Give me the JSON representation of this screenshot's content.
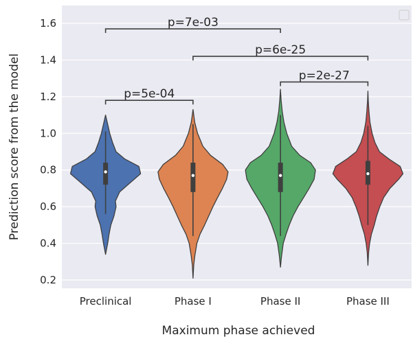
{
  "chart_data": {
    "type": "violin",
    "xlabel": "Maximum phase achieved",
    "ylabel": "Prediction score from the model",
    "ylim": [
      0.15,
      1.68
    ],
    "yticks": [
      "0.2",
      "0.4",
      "0.6",
      "0.8",
      "1.0",
      "1.2",
      "1.4",
      "1.6"
    ],
    "grid": true,
    "legend": "top-right (empty)",
    "categories": [
      "Preclinical",
      "Phase I",
      "Phase II",
      "Phase III"
    ],
    "series": [
      {
        "category": "Preclinical",
        "color": "#4c72b0",
        "min": 0.34,
        "max": 1.1,
        "q1": 0.72,
        "median": 0.79,
        "q3": 0.84,
        "whisker_low": 0.56,
        "whisker_high": 1.01,
        "profile": [
          [
            0.34,
            0.0
          ],
          [
            0.4,
            0.06
          ],
          [
            0.45,
            0.1
          ],
          [
            0.5,
            0.15
          ],
          [
            0.55,
            0.24
          ],
          [
            0.6,
            0.3
          ],
          [
            0.63,
            0.28
          ],
          [
            0.68,
            0.4
          ],
          [
            0.73,
            0.7
          ],
          [
            0.78,
            1.0
          ],
          [
            0.82,
            0.95
          ],
          [
            0.86,
            0.55
          ],
          [
            0.9,
            0.3
          ],
          [
            0.95,
            0.2
          ],
          [
            1.0,
            0.12
          ],
          [
            1.05,
            0.06
          ],
          [
            1.1,
            0.0
          ]
        ]
      },
      {
        "category": "Phase I",
        "color": "#dd8452",
        "min": 0.21,
        "max": 1.13,
        "q1": 0.68,
        "median": 0.77,
        "q3": 0.84,
        "whisker_low": 0.44,
        "whisker_high": 1.05,
        "profile": [
          [
            0.21,
            0.0
          ],
          [
            0.28,
            0.02
          ],
          [
            0.33,
            0.05
          ],
          [
            0.4,
            0.11
          ],
          [
            0.45,
            0.2
          ],
          [
            0.5,
            0.33
          ],
          [
            0.55,
            0.45
          ],
          [
            0.6,
            0.57
          ],
          [
            0.65,
            0.7
          ],
          [
            0.7,
            0.84
          ],
          [
            0.75,
            0.96
          ],
          [
            0.79,
            1.0
          ],
          [
            0.83,
            0.85
          ],
          [
            0.88,
            0.5
          ],
          [
            0.93,
            0.28
          ],
          [
            1.0,
            0.13
          ],
          [
            1.06,
            0.05
          ],
          [
            1.13,
            0.0
          ]
        ]
      },
      {
        "category": "Phase II",
        "color": "#55a868",
        "min": 0.27,
        "max": 1.24,
        "q1": 0.68,
        "median": 0.77,
        "q3": 0.84,
        "whisker_low": 0.44,
        "whisker_high": 1.1,
        "profile": [
          [
            0.27,
            0.0
          ],
          [
            0.33,
            0.03
          ],
          [
            0.4,
            0.08
          ],
          [
            0.45,
            0.16
          ],
          [
            0.5,
            0.25
          ],
          [
            0.55,
            0.36
          ],
          [
            0.6,
            0.5
          ],
          [
            0.65,
            0.66
          ],
          [
            0.7,
            0.82
          ],
          [
            0.75,
            0.96
          ],
          [
            0.8,
            1.0
          ],
          [
            0.84,
            0.86
          ],
          [
            0.88,
            0.55
          ],
          [
            0.93,
            0.32
          ],
          [
            1.0,
            0.18
          ],
          [
            1.06,
            0.1
          ],
          [
            1.12,
            0.05
          ],
          [
            1.18,
            0.02
          ],
          [
            1.24,
            0.0
          ]
        ]
      },
      {
        "category": "Phase III",
        "color": "#c44e52",
        "min": 0.28,
        "max": 1.23,
        "q1": 0.72,
        "median": 0.78,
        "q3": 0.85,
        "whisker_low": 0.5,
        "whisker_high": 1.04,
        "profile": [
          [
            0.28,
            0.0
          ],
          [
            0.35,
            0.02
          ],
          [
            0.4,
            0.05
          ],
          [
            0.45,
            0.1
          ],
          [
            0.5,
            0.18
          ],
          [
            0.55,
            0.25
          ],
          [
            0.6,
            0.34
          ],
          [
            0.65,
            0.45
          ],
          [
            0.7,
            0.63
          ],
          [
            0.75,
            0.88
          ],
          [
            0.78,
            1.0
          ],
          [
            0.82,
            0.92
          ],
          [
            0.86,
            0.6
          ],
          [
            0.9,
            0.33
          ],
          [
            0.95,
            0.2
          ],
          [
            1.0,
            0.12
          ],
          [
            1.06,
            0.06
          ],
          [
            1.12,
            0.03
          ],
          [
            1.18,
            0.01
          ],
          [
            1.23,
            0.0
          ]
        ]
      }
    ],
    "annotations": [
      {
        "from": "Preclinical",
        "to": "Phase II",
        "y": 1.57,
        "text": "p=7e-03"
      },
      {
        "from": "Phase I",
        "to": "Phase III",
        "y": 1.42,
        "text": "p=6e-25"
      },
      {
        "from": "Phase II",
        "to": "Phase III",
        "y": 1.28,
        "text": "p=2e-27"
      },
      {
        "from": "Preclinical",
        "to": "Phase I",
        "y": 1.18,
        "text": "p=5e-04"
      }
    ]
  }
}
